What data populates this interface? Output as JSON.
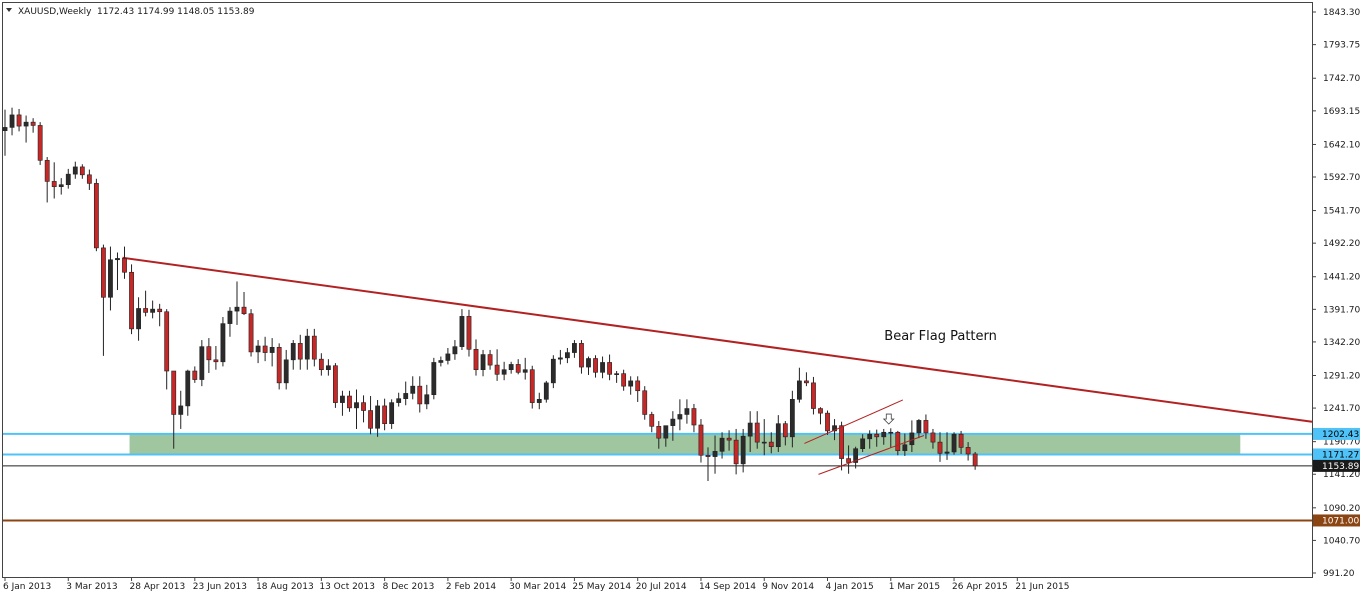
{
  "header": {
    "symbol": "XAUUSD,Weekly",
    "ohlc": "1172.43 1174.99 1148.05 1153.89"
  },
  "colors": {
    "background": "#ffffff",
    "bull": "#2b2b2b",
    "bear": "#c62828",
    "wick": "#222222",
    "trendline": "#b22222",
    "zone_fill": "#8fbc8f",
    "zone_border": "#4fc3f7",
    "support_line": "#8b4513",
    "price_line": "#222222"
  },
  "chart_data": {
    "type": "candlestick",
    "title": "XAUUSD,Weekly",
    "x_tick_labels": [
      "6 Jan 2013",
      "3 Mar 2013",
      "28 Apr 2013",
      "23 Jun 2013",
      "18 Aug 2013",
      "13 Oct 2013",
      "8 Dec 2013",
      "2 Feb 2014",
      "30 Mar 2014",
      "25 May 2014",
      "20 Jul 2014",
      "14 Sep 2014",
      "9 Nov 2014",
      "4 Jan 2015",
      "1 Mar 2015",
      "26 Apr 2015",
      "21 Jun 2015"
    ],
    "y_tick_labels": [
      "1843.30",
      "1793.75",
      "1742.70",
      "1693.15",
      "1642.10",
      "1592.70",
      "1541.70",
      "1492.20",
      "1441.20",
      "1391.70",
      "1342.20",
      "1291.20",
      "1241.70",
      "1190.70",
      "1141.20",
      "1090.20",
      "1040.70",
      "991.20"
    ],
    "ylim": [
      991.2,
      1843.3
    ],
    "grid": false,
    "candles": [
      {
        "o": 1663,
        "h": 1695,
        "l": 1625,
        "c": 1668
      },
      {
        "o": 1668,
        "h": 1698,
        "l": 1656,
        "c": 1687
      },
      {
        "o": 1687,
        "h": 1696,
        "l": 1662,
        "c": 1670
      },
      {
        "o": 1670,
        "h": 1686,
        "l": 1645,
        "c": 1676
      },
      {
        "o": 1676,
        "h": 1682,
        "l": 1660,
        "c": 1671
      },
      {
        "o": 1671,
        "h": 1676,
        "l": 1611,
        "c": 1618
      },
      {
        "o": 1618,
        "h": 1623,
        "l": 1554,
        "c": 1586
      },
      {
        "o": 1586,
        "h": 1615,
        "l": 1560,
        "c": 1578
      },
      {
        "o": 1578,
        "h": 1591,
        "l": 1566,
        "c": 1581
      },
      {
        "o": 1581,
        "h": 1605,
        "l": 1575,
        "c": 1597
      },
      {
        "o": 1597,
        "h": 1616,
        "l": 1590,
        "c": 1608
      },
      {
        "o": 1608,
        "h": 1612,
        "l": 1590,
        "c": 1596
      },
      {
        "o": 1596,
        "h": 1604,
        "l": 1573,
        "c": 1583
      },
      {
        "o": 1583,
        "h": 1590,
        "l": 1480,
        "c": 1485
      },
      {
        "o": 1485,
        "h": 1490,
        "l": 1321,
        "c": 1410
      },
      {
        "o": 1410,
        "h": 1487,
        "l": 1390,
        "c": 1467
      },
      {
        "o": 1467,
        "h": 1478,
        "l": 1421,
        "c": 1469
      },
      {
        "o": 1469,
        "h": 1487,
        "l": 1438,
        "c": 1448
      },
      {
        "o": 1448,
        "h": 1460,
        "l": 1354,
        "c": 1362
      },
      {
        "o": 1362,
        "h": 1410,
        "l": 1344,
        "c": 1393
      },
      {
        "o": 1393,
        "h": 1420,
        "l": 1381,
        "c": 1387
      },
      {
        "o": 1387,
        "h": 1405,
        "l": 1378,
        "c": 1392
      },
      {
        "o": 1392,
        "h": 1400,
        "l": 1366,
        "c": 1388
      },
      {
        "o": 1388,
        "h": 1392,
        "l": 1270,
        "c": 1298
      },
      {
        "o": 1298,
        "h": 1297,
        "l": 1180,
        "c": 1232
      },
      {
        "o": 1232,
        "h": 1268,
        "l": 1210,
        "c": 1245
      },
      {
        "o": 1245,
        "h": 1300,
        "l": 1230,
        "c": 1298
      },
      {
        "o": 1298,
        "h": 1305,
        "l": 1280,
        "c": 1285
      },
      {
        "o": 1285,
        "h": 1345,
        "l": 1275,
        "c": 1335
      },
      {
        "o": 1335,
        "h": 1348,
        "l": 1295,
        "c": 1315
      },
      {
        "o": 1315,
        "h": 1336,
        "l": 1300,
        "c": 1312
      },
      {
        "o": 1312,
        "h": 1380,
        "l": 1305,
        "c": 1370
      },
      {
        "o": 1370,
        "h": 1395,
        "l": 1350,
        "c": 1389
      },
      {
        "o": 1389,
        "h": 1434,
        "l": 1368,
        "c": 1395
      },
      {
        "o": 1395,
        "h": 1418,
        "l": 1383,
        "c": 1385
      },
      {
        "o": 1385,
        "h": 1392,
        "l": 1320,
        "c": 1327
      },
      {
        "o": 1327,
        "h": 1345,
        "l": 1310,
        "c": 1336
      },
      {
        "o": 1336,
        "h": 1350,
        "l": 1313,
        "c": 1326
      },
      {
        "o": 1326,
        "h": 1348,
        "l": 1305,
        "c": 1334
      },
      {
        "o": 1334,
        "h": 1340,
        "l": 1270,
        "c": 1280
      },
      {
        "o": 1280,
        "h": 1330,
        "l": 1270,
        "c": 1315
      },
      {
        "o": 1315,
        "h": 1345,
        "l": 1300,
        "c": 1340
      },
      {
        "o": 1340,
        "h": 1353,
        "l": 1300,
        "c": 1316
      },
      {
        "o": 1316,
        "h": 1362,
        "l": 1300,
        "c": 1351
      },
      {
        "o": 1351,
        "h": 1362,
        "l": 1305,
        "c": 1316
      },
      {
        "o": 1316,
        "h": 1325,
        "l": 1291,
        "c": 1300
      },
      {
        "o": 1300,
        "h": 1316,
        "l": 1291,
        "c": 1306
      },
      {
        "o": 1306,
        "h": 1310,
        "l": 1242,
        "c": 1250
      },
      {
        "o": 1250,
        "h": 1268,
        "l": 1230,
        "c": 1260
      },
      {
        "o": 1260,
        "h": 1268,
        "l": 1236,
        "c": 1242
      },
      {
        "o": 1242,
        "h": 1270,
        "l": 1210,
        "c": 1250
      },
      {
        "o": 1250,
        "h": 1261,
        "l": 1220,
        "c": 1238
      },
      {
        "o": 1238,
        "h": 1260,
        "l": 1202,
        "c": 1211
      },
      {
        "o": 1211,
        "h": 1254,
        "l": 1198,
        "c": 1245
      },
      {
        "o": 1245,
        "h": 1256,
        "l": 1208,
        "c": 1218
      },
      {
        "o": 1218,
        "h": 1255,
        "l": 1210,
        "c": 1250
      },
      {
        "o": 1250,
        "h": 1265,
        "l": 1244,
        "c": 1256
      },
      {
        "o": 1256,
        "h": 1282,
        "l": 1246,
        "c": 1264
      },
      {
        "o": 1264,
        "h": 1290,
        "l": 1255,
        "c": 1275
      },
      {
        "o": 1275,
        "h": 1290,
        "l": 1235,
        "c": 1248
      },
      {
        "o": 1248,
        "h": 1277,
        "l": 1240,
        "c": 1262
      },
      {
        "o": 1262,
        "h": 1318,
        "l": 1255,
        "c": 1311
      },
      {
        "o": 1311,
        "h": 1320,
        "l": 1305,
        "c": 1314
      },
      {
        "o": 1314,
        "h": 1333,
        "l": 1308,
        "c": 1324
      },
      {
        "o": 1324,
        "h": 1345,
        "l": 1315,
        "c": 1335
      },
      {
        "o": 1335,
        "h": 1392,
        "l": 1330,
        "c": 1381
      },
      {
        "o": 1381,
        "h": 1391,
        "l": 1320,
        "c": 1331
      },
      {
        "o": 1331,
        "h": 1346,
        "l": 1291,
        "c": 1300
      },
      {
        "o": 1300,
        "h": 1330,
        "l": 1290,
        "c": 1323
      },
      {
        "o": 1323,
        "h": 1330,
        "l": 1300,
        "c": 1307
      },
      {
        "o": 1307,
        "h": 1331,
        "l": 1283,
        "c": 1293
      },
      {
        "o": 1293,
        "h": 1312,
        "l": 1284,
        "c": 1300
      },
      {
        "o": 1300,
        "h": 1312,
        "l": 1294,
        "c": 1308
      },
      {
        "o": 1308,
        "h": 1316,
        "l": 1293,
        "c": 1296
      },
      {
        "o": 1296,
        "h": 1318,
        "l": 1285,
        "c": 1300
      },
      {
        "o": 1300,
        "h": 1306,
        "l": 1241,
        "c": 1250
      },
      {
        "o": 1250,
        "h": 1265,
        "l": 1240,
        "c": 1255
      },
      {
        "o": 1255,
        "h": 1283,
        "l": 1250,
        "c": 1280
      },
      {
        "o": 1280,
        "h": 1322,
        "l": 1272,
        "c": 1316
      },
      {
        "o": 1316,
        "h": 1330,
        "l": 1308,
        "c": 1318
      },
      {
        "o": 1318,
        "h": 1333,
        "l": 1310,
        "c": 1326
      },
      {
        "o": 1326,
        "h": 1345,
        "l": 1318,
        "c": 1340
      },
      {
        "o": 1340,
        "h": 1345,
        "l": 1294,
        "c": 1304
      },
      {
        "o": 1304,
        "h": 1320,
        "l": 1292,
        "c": 1317
      },
      {
        "o": 1317,
        "h": 1322,
        "l": 1288,
        "c": 1296
      },
      {
        "o": 1296,
        "h": 1320,
        "l": 1287,
        "c": 1311
      },
      {
        "o": 1311,
        "h": 1323,
        "l": 1284,
        "c": 1293
      },
      {
        "o": 1293,
        "h": 1298,
        "l": 1280,
        "c": 1294
      },
      {
        "o": 1294,
        "h": 1300,
        "l": 1268,
        "c": 1275
      },
      {
        "o": 1275,
        "h": 1290,
        "l": 1262,
        "c": 1283
      },
      {
        "o": 1283,
        "h": 1290,
        "l": 1251,
        "c": 1268
      },
      {
        "o": 1268,
        "h": 1275,
        "l": 1224,
        "c": 1232
      },
      {
        "o": 1232,
        "h": 1236,
        "l": 1205,
        "c": 1214
      },
      {
        "o": 1214,
        "h": 1222,
        "l": 1180,
        "c": 1196
      },
      {
        "o": 1196,
        "h": 1212,
        "l": 1183,
        "c": 1215
      },
      {
        "o": 1215,
        "h": 1237,
        "l": 1192,
        "c": 1225
      },
      {
        "o": 1225,
        "h": 1255,
        "l": 1208,
        "c": 1232
      },
      {
        "o": 1232,
        "h": 1255,
        "l": 1218,
        "c": 1241
      },
      {
        "o": 1241,
        "h": 1248,
        "l": 1205,
        "c": 1216
      },
      {
        "o": 1216,
        "h": 1225,
        "l": 1159,
        "c": 1170
      },
      {
        "o": 1170,
        "h": 1182,
        "l": 1131,
        "c": 1168
      },
      {
        "o": 1168,
        "h": 1200,
        "l": 1142,
        "c": 1176
      },
      {
        "o": 1176,
        "h": 1205,
        "l": 1165,
        "c": 1196
      },
      {
        "o": 1196,
        "h": 1208,
        "l": 1177,
        "c": 1193
      },
      {
        "o": 1193,
        "h": 1210,
        "l": 1141,
        "c": 1157
      },
      {
        "o": 1157,
        "h": 1210,
        "l": 1144,
        "c": 1199
      },
      {
        "o": 1199,
        "h": 1237,
        "l": 1175,
        "c": 1219
      },
      {
        "o": 1219,
        "h": 1237,
        "l": 1180,
        "c": 1190
      },
      {
        "o": 1190,
        "h": 1225,
        "l": 1170,
        "c": 1190
      },
      {
        "o": 1190,
        "h": 1205,
        "l": 1173,
        "c": 1183
      },
      {
        "o": 1183,
        "h": 1231,
        "l": 1175,
        "c": 1218
      },
      {
        "o": 1218,
        "h": 1222,
        "l": 1185,
        "c": 1198
      },
      {
        "o": 1198,
        "h": 1268,
        "l": 1182,
        "c": 1255
      },
      {
        "o": 1255,
        "h": 1303,
        "l": 1250,
        "c": 1283
      },
      {
        "o": 1283,
        "h": 1296,
        "l": 1275,
        "c": 1280
      },
      {
        "o": 1280,
        "h": 1289,
        "l": 1232,
        "c": 1241
      },
      {
        "o": 1241,
        "h": 1243,
        "l": 1217,
        "c": 1234
      },
      {
        "o": 1234,
        "h": 1238,
        "l": 1201,
        "c": 1207
      },
      {
        "o": 1207,
        "h": 1225,
        "l": 1193,
        "c": 1215
      },
      {
        "o": 1215,
        "h": 1221,
        "l": 1147,
        "c": 1165
      },
      {
        "o": 1165,
        "h": 1185,
        "l": 1142,
        "c": 1159
      },
      {
        "o": 1159,
        "h": 1183,
        "l": 1150,
        "c": 1180
      },
      {
        "o": 1180,
        "h": 1202,
        "l": 1175,
        "c": 1195
      },
      {
        "o": 1195,
        "h": 1208,
        "l": 1180,
        "c": 1202
      },
      {
        "o": 1202,
        "h": 1209,
        "l": 1183,
        "c": 1198
      },
      {
        "o": 1198,
        "h": 1210,
        "l": 1186,
        "c": 1205
      },
      {
        "o": 1205,
        "h": 1211,
        "l": 1182,
        "c": 1205
      },
      {
        "o": 1205,
        "h": 1207,
        "l": 1170,
        "c": 1177
      },
      {
        "o": 1177,
        "h": 1203,
        "l": 1169,
        "c": 1186
      },
      {
        "o": 1186,
        "h": 1223,
        "l": 1175,
        "c": 1204
      },
      {
        "o": 1204,
        "h": 1225,
        "l": 1196,
        "c": 1223
      },
      {
        "o": 1223,
        "h": 1232,
        "l": 1195,
        "c": 1204
      },
      {
        "o": 1204,
        "h": 1210,
        "l": 1180,
        "c": 1190
      },
      {
        "o": 1190,
        "h": 1205,
        "l": 1160,
        "c": 1173
      },
      {
        "o": 1173,
        "h": 1205,
        "l": 1163,
        "c": 1175
      },
      {
        "o": 1175,
        "h": 1205,
        "l": 1171,
        "c": 1202
      },
      {
        "o": 1202,
        "h": 1207,
        "l": 1172,
        "c": 1182
      },
      {
        "o": 1182,
        "h": 1190,
        "l": 1162,
        "c": 1172
      },
      {
        "o": 1172,
        "h": 1175,
        "l": 1148,
        "c": 1154
      }
    ],
    "trendline_points": [
      {
        "i": 17,
        "y": 1470
      },
      {
        "i": 214,
        "y": 1180
      }
    ],
    "zone": {
      "top": 1202.43,
      "bottom": 1171.27,
      "start_i": 18,
      "end_i": 176
    },
    "bear_flag_channel": [
      {
        "x1": 114,
        "y1": 1188,
        "x2": 128,
        "y2": 1254
      },
      {
        "x1": 116,
        "y1": 1141,
        "x2": 131,
        "y2": 1200
      }
    ],
    "horizontal_lines": [
      {
        "value": 1202.43,
        "label": "1202.43",
        "kind": "zone"
      },
      {
        "value": 1171.27,
        "label": "1171.27",
        "kind": "zone"
      },
      {
        "value": 1153.89,
        "label": "1153.89",
        "kind": "price"
      },
      {
        "value": 1071.0,
        "label": "1071.00",
        "kind": "support"
      }
    ],
    "annotations": [
      {
        "text": "Bear Flag Pattern",
        "i": 110,
        "y": 1345
      }
    ],
    "arrow_marker": {
      "i": 126,
      "y": 1222
    }
  }
}
